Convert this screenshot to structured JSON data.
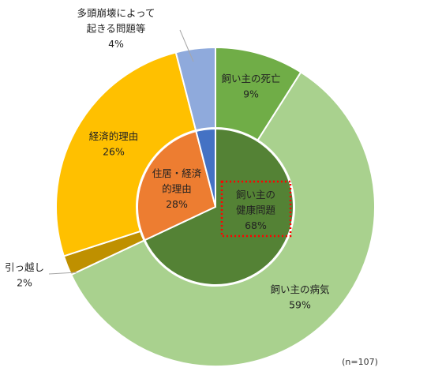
{
  "chart_data": {
    "type": "pie",
    "variant": "nested-donut",
    "note": "(n=107)",
    "outer_ring": [
      {
        "label": "飼い主の死亡",
        "value": 9,
        "display": "9%",
        "color": "#70ad47"
      },
      {
        "label": "飼い主の病気",
        "value": 59,
        "display": "59%",
        "color": "#a9d18e"
      },
      {
        "label": "引っ越し",
        "value": 2,
        "display": "2%",
        "color": "#bf9000"
      },
      {
        "label": "経済的理由",
        "value": 26,
        "display": "26%",
        "color": "#ffc000"
      },
      {
        "label": "多頭崩壊によって起きる問題等",
        "label_lines": [
          "多頭崩壊によって",
          "起きる問題等"
        ],
        "value": 4,
        "display": "4%",
        "color": "#8faadc"
      }
    ],
    "inner_pie": [
      {
        "label": "飼い主の健康問題",
        "label_lines": [
          "飼い主の",
          "健康問題"
        ],
        "value": 68,
        "display": "68%",
        "color": "#548235",
        "highlighted": true,
        "highlight_color": "#ff0000"
      },
      {
        "label": "住居・経済的理由",
        "label_lines": [
          "住居・経済",
          "的理由"
        ],
        "value": 28,
        "display": "28%",
        "color": "#ed7d31"
      },
      {
        "label": "",
        "value": 4,
        "display": "",
        "color": "#4472c4"
      }
    ]
  }
}
